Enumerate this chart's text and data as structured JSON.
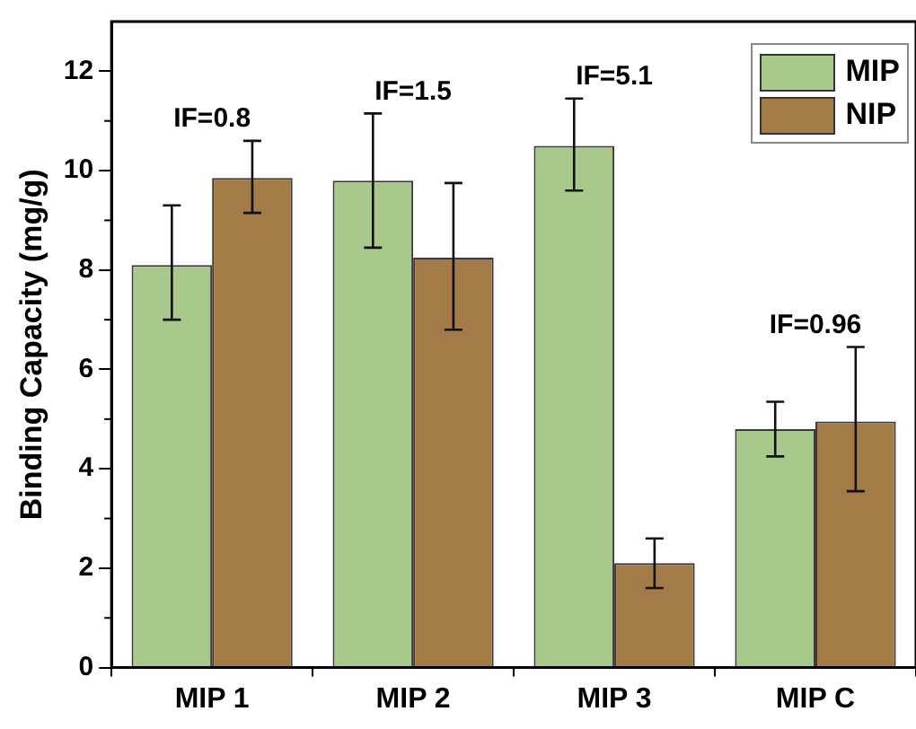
{
  "chart_data": {
    "type": "bar",
    "ylabel": "Binding Capacity (mg/g)",
    "categories": [
      "MIP 1",
      "MIP 2",
      "MIP 3",
      "MIP C"
    ],
    "series": [
      {
        "name": "MIP",
        "color": "#a9c98b",
        "values": [
          8.1,
          9.8,
          10.5,
          4.8
        ],
        "errors": [
          [
            7.0,
            9.3
          ],
          [
            8.45,
            11.15
          ],
          [
            9.6,
            11.45
          ],
          [
            4.25,
            5.35
          ]
        ]
      },
      {
        "name": "NIP",
        "color": "#a27b46",
        "values": [
          9.85,
          8.25,
          2.1,
          4.95
        ],
        "errors": [
          [
            9.15,
            10.6
          ],
          [
            6.8,
            9.75
          ],
          [
            1.6,
            2.6
          ],
          [
            3.55,
            6.45
          ]
        ]
      }
    ],
    "ylim": [
      0,
      13
    ],
    "yticks": [
      0,
      2,
      4,
      6,
      8,
      10,
      12
    ],
    "grid": false,
    "legend": "top right",
    "annotations": [
      "IF=0.8",
      "IF=1.5",
      "IF=5.1",
      "IF=0.96"
    ]
  }
}
